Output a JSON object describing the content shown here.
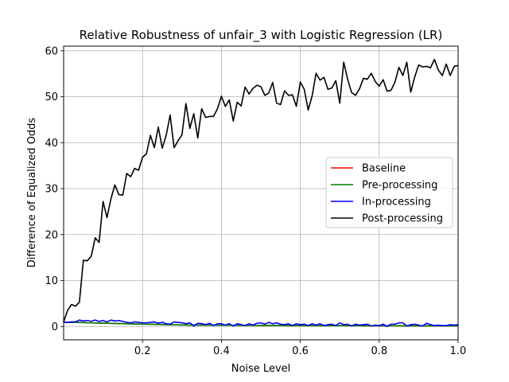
{
  "chart_data": {
    "type": "line",
    "title": "Relative Robustness of unfair_3 with Logistic Regression (LR)",
    "xlabel": "Noise Level",
    "ylabel": "Difference of Equalized Odds",
    "xlim": [
      0.0,
      1.0
    ],
    "ylim": [
      -2.9,
      61.0
    ],
    "xticks": [
      0.2,
      0.4,
      0.6,
      0.8,
      1.0
    ],
    "xtick_labels": [
      "0.2",
      "0.4",
      "0.6",
      "0.8",
      "1.0"
    ],
    "yticks": [
      0,
      10,
      20,
      30,
      40,
      50,
      60
    ],
    "ytick_labels": [
      "0",
      "10",
      "20",
      "30",
      "40",
      "50",
      "60"
    ],
    "grid": true,
    "legend_position": "center-right",
    "x": [
      0.0,
      0.01,
      0.02,
      0.03,
      0.04,
      0.05,
      0.06,
      0.07,
      0.08,
      0.09,
      0.1,
      0.11,
      0.12,
      0.13,
      0.14,
      0.15,
      0.16,
      0.17,
      0.18,
      0.19,
      0.2,
      0.21,
      0.22,
      0.23,
      0.24,
      0.25,
      0.26,
      0.27,
      0.28,
      0.29,
      0.3,
      0.31,
      0.32,
      0.33,
      0.34,
      0.35,
      0.36,
      0.37,
      0.38,
      0.39,
      0.4,
      0.41,
      0.42,
      0.43,
      0.44,
      0.45,
      0.46,
      0.47,
      0.48,
      0.49,
      0.5,
      0.51,
      0.52,
      0.53,
      0.54,
      0.55,
      0.56,
      0.57,
      0.58,
      0.59,
      0.6,
      0.61,
      0.62,
      0.63,
      0.64,
      0.65,
      0.66,
      0.67,
      0.68,
      0.69,
      0.7,
      0.71,
      0.72,
      0.73,
      0.74,
      0.75,
      0.76,
      0.77,
      0.78,
      0.79,
      0.8,
      0.81,
      0.82,
      0.83,
      0.84,
      0.85,
      0.86,
      0.87,
      0.88,
      0.89,
      0.9,
      0.91,
      0.92,
      0.93,
      0.94,
      0.95,
      0.96,
      0.97,
      0.98,
      0.99,
      1.0
    ],
    "series": [
      {
        "name": "Baseline",
        "color": "#ff0000",
        "values": [
          0.9,
          0.9,
          0.9,
          0.9,
          0.9,
          0.85,
          0.8,
          0.78,
          0.76,
          0.74,
          0.72,
          0.7,
          0.68,
          0.66,
          0.64,
          0.62,
          0.6,
          0.58,
          0.56,
          0.54,
          0.52,
          0.5,
          0.48,
          0.46,
          0.44,
          0.42,
          0.4,
          0.38,
          0.36,
          0.35,
          0.34,
          0.33,
          0.32,
          0.31,
          0.3,
          0.3,
          0.29,
          0.29,
          0.28,
          0.28,
          0.27,
          0.27,
          0.26,
          0.26,
          0.25,
          0.25,
          0.25,
          0.24,
          0.24,
          0.24,
          0.23,
          0.23,
          0.23,
          0.22,
          0.22,
          0.22,
          0.22,
          0.21,
          0.21,
          0.21,
          0.21,
          0.2,
          0.2,
          0.2,
          0.2,
          0.2,
          0.19,
          0.19,
          0.19,
          0.19,
          0.19,
          0.18,
          0.18,
          0.18,
          0.18,
          0.18,
          0.17,
          0.17,
          0.17,
          0.17,
          0.17,
          0.16,
          0.16,
          0.16,
          0.16,
          0.16,
          0.15,
          0.15,
          0.15,
          0.15,
          0.15,
          0.14,
          0.14,
          0.14,
          0.14,
          0.14,
          0.13,
          0.13,
          0.13,
          0.13,
          0.13
        ]
      },
      {
        "name": "Pre-processing",
        "color": "#008000",
        "values": [
          0.9,
          0.9,
          0.9,
          0.9,
          0.9,
          0.85,
          0.8,
          0.78,
          0.76,
          0.74,
          0.72,
          0.7,
          0.68,
          0.66,
          0.64,
          0.62,
          0.6,
          0.58,
          0.56,
          0.54,
          0.52,
          0.5,
          0.48,
          0.46,
          0.44,
          0.42,
          0.4,
          0.38,
          0.36,
          0.35,
          0.34,
          0.33,
          0.32,
          0.31,
          0.3,
          0.3,
          0.29,
          0.29,
          0.28,
          0.28,
          0.27,
          0.27,
          0.26,
          0.26,
          0.25,
          0.25,
          0.25,
          0.24,
          0.24,
          0.24,
          0.23,
          0.23,
          0.23,
          0.22,
          0.22,
          0.22,
          0.22,
          0.21,
          0.21,
          0.21,
          0.21,
          0.2,
          0.2,
          0.2,
          0.2,
          0.2,
          0.19,
          0.19,
          0.19,
          0.19,
          0.19,
          0.18,
          0.18,
          0.18,
          0.18,
          0.18,
          0.17,
          0.17,
          0.17,
          0.17,
          0.17,
          0.16,
          0.16,
          0.16,
          0.16,
          0.16,
          0.15,
          0.15,
          0.15,
          0.15,
          0.15,
          0.14,
          0.14,
          0.14,
          0.14,
          0.14,
          0.13,
          0.13,
          0.13,
          0.13,
          0.13
        ]
      },
      {
        "name": "In-processing",
        "color": "#0000ff",
        "values": [
          0.9,
          0.9,
          1.0,
          1.0,
          1.4,
          1.2,
          1.3,
          1.1,
          1.4,
          1.1,
          1.3,
          1.0,
          1.4,
          1.2,
          1.3,
          1.1,
          0.9,
          0.8,
          1.0,
          0.9,
          0.8,
          0.8,
          0.9,
          1.0,
          0.7,
          0.9,
          0.6,
          0.5,
          1.0,
          0.9,
          0.8,
          0.6,
          0.8,
          0.1,
          0.7,
          0.6,
          0.4,
          0.7,
          0.2,
          0.6,
          0.6,
          0.3,
          0.6,
          0.1,
          0.6,
          0.4,
          0.2,
          0.6,
          0.3,
          0.7,
          0.8,
          0.5,
          0.9,
          0.6,
          0.8,
          0.5,
          0.4,
          0.6,
          0.2,
          0.6,
          0.4,
          0.5,
          0.2,
          0.6,
          0.3,
          0.6,
          0.2,
          0.4,
          0.5,
          0.2,
          0.8,
          0.4,
          0.5,
          0.1,
          0.5,
          0.3,
          0.4,
          0.5,
          0.1,
          0.3,
          0.2,
          0.5,
          0.0,
          0.5,
          0.5,
          0.8,
          0.8,
          0.1,
          0.4,
          0.5,
          0.3,
          0.1,
          0.7,
          0.4,
          0.2,
          0.3,
          0.2,
          0.2,
          0.4,
          0.3,
          0.4
        ]
      },
      {
        "name": "Post-processing",
        "color": "#000000",
        "values": [
          1.0,
          3.5,
          4.8,
          4.4,
          5.3,
          14.4,
          14.3,
          15.3,
          19.3,
          18.3,
          27.2,
          23.7,
          27.8,
          30.8,
          28.7,
          28.6,
          33.3,
          32.6,
          34.4,
          34.0,
          36.8,
          37.6,
          41.6,
          38.9,
          43.4,
          38.8,
          41.6,
          46.0,
          38.9,
          40.4,
          41.7,
          48.5,
          43.1,
          46.3,
          41.0,
          47.4,
          45.5,
          45.7,
          45.7,
          47.4,
          50.1,
          47.9,
          49.3,
          44.7,
          48.8,
          48.0,
          52.1,
          50.6,
          51.8,
          52.5,
          52.2,
          50.3,
          50.8,
          53.1,
          48.6,
          48.3,
          51.3,
          50.3,
          50.4,
          47.9,
          53.2,
          51.6,
          47.1,
          50.2,
          55.1,
          53.6,
          54.2,
          51.6,
          51.9,
          53.5,
          48.6,
          57.5,
          53.8,
          50.9,
          50.3,
          51.7,
          54.0,
          53.8,
          55.1,
          53.3,
          52.3,
          53.7,
          51.2,
          51.4,
          53.2,
          56.4,
          54.6,
          57.5,
          51.0,
          54.3,
          56.9,
          56.5,
          56.6,
          56.3,
          58.1,
          55.8,
          54.6,
          57.1,
          54.6,
          56.6,
          56.8
        ]
      }
    ]
  }
}
